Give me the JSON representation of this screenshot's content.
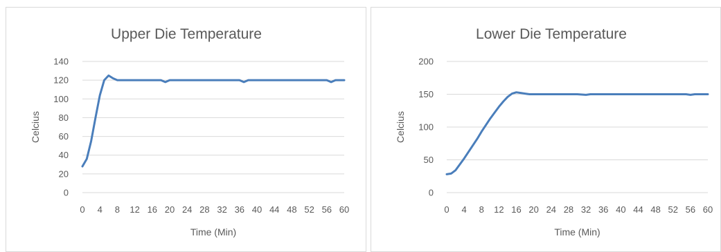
{
  "chart_data": [
    {
      "type": "line",
      "title": "Upper Die Temperature",
      "xlabel": "Time (Min)",
      "ylabel": "Celcius",
      "xlim": [
        0,
        60
      ],
      "ylim": [
        0,
        140
      ],
      "yticks": [
        0,
        20,
        40,
        60,
        80,
        100,
        120,
        140
      ],
      "xticks": [
        0,
        4,
        8,
        12,
        16,
        20,
        24,
        28,
        32,
        36,
        40,
        44,
        48,
        52,
        56,
        60
      ],
      "grid": true,
      "series": [
        {
          "color": "#4a7ebb",
          "points": [
            [
              0,
              28
            ],
            [
              1,
              36
            ],
            [
              2,
              55
            ],
            [
              3,
              80
            ],
            [
              4,
              104
            ],
            [
              5,
              120
            ],
            [
              6,
              125
            ],
            [
              7,
              122
            ],
            [
              8,
              120
            ],
            [
              10,
              120
            ],
            [
              12,
              120
            ],
            [
              16,
              120
            ],
            [
              18,
              120
            ],
            [
              19,
              118
            ],
            [
              20,
              120
            ],
            [
              24,
              120
            ],
            [
              30,
              120
            ],
            [
              36,
              120
            ],
            [
              37,
              118
            ],
            [
              38,
              120
            ],
            [
              44,
              120
            ],
            [
              50,
              120
            ],
            [
              56,
              120
            ],
            [
              57,
              118
            ],
            [
              58,
              120
            ],
            [
              60,
              120
            ]
          ]
        }
      ]
    },
    {
      "type": "line",
      "title": "Lower Die Temperature",
      "xlabel": "Time (Min)",
      "ylabel": "Celcius",
      "xlim": [
        0,
        60
      ],
      "ylim": [
        0,
        200
      ],
      "yticks": [
        0,
        50,
        100,
        150,
        200
      ],
      "xticks": [
        0,
        4,
        8,
        12,
        16,
        20,
        24,
        28,
        32,
        36,
        40,
        44,
        48,
        52,
        56,
        60
      ],
      "grid": true,
      "series": [
        {
          "color": "#4a7ebb",
          "points": [
            [
              0,
              28
            ],
            [
              1,
              29
            ],
            [
              2,
              34
            ],
            [
              3,
              43
            ],
            [
              4,
              52
            ],
            [
              5,
              62
            ],
            [
              6,
              72
            ],
            [
              7,
              82
            ],
            [
              8,
              93
            ],
            [
              9,
              103
            ],
            [
              10,
              113
            ],
            [
              11,
              122
            ],
            [
              12,
              131
            ],
            [
              13,
              139
            ],
            [
              14,
              146
            ],
            [
              15,
              151
            ],
            [
              16,
              153
            ],
            [
              17,
              152
            ],
            [
              18,
              151
            ],
            [
              19,
              150
            ],
            [
              20,
              150
            ],
            [
              25,
              150
            ],
            [
              30,
              150
            ],
            [
              32,
              149
            ],
            [
              33,
              150
            ],
            [
              40,
              150
            ],
            [
              50,
              150
            ],
            [
              55,
              150
            ],
            [
              56,
              149
            ],
            [
              57,
              150
            ],
            [
              60,
              150
            ]
          ]
        }
      ]
    }
  ]
}
